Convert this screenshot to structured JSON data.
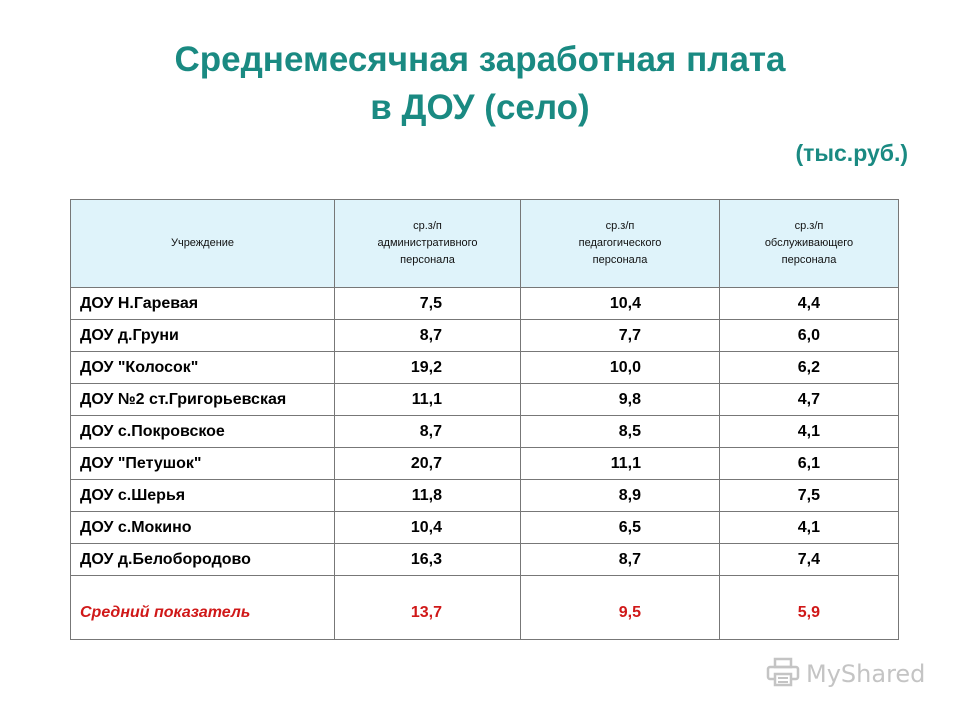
{
  "title": {
    "line1": "Среднемесячная заработная плата",
    "line2": "в ДОУ (село)"
  },
  "unit": "(тыс.руб.)",
  "table": {
    "headers": [
      [
        "Учреждение"
      ],
      [
        "ср.з/п",
        "административного",
        "персонала"
      ],
      [
        "ср.з/п",
        "педагогического",
        "персонала"
      ],
      [
        "ср.з/п",
        "обслуживающего",
        "персонала"
      ]
    ],
    "rows": [
      [
        "ДОУ Н.Гаревая",
        "7,5",
        "10,4",
        "4,4"
      ],
      [
        "ДОУ д.Груни",
        "8,7",
        "7,7",
        "6,0"
      ],
      [
        "ДОУ \"Колосок\"",
        "19,2",
        "10,0",
        "6,2"
      ],
      [
        "ДОУ №2 ст.Григорьевская",
        "11,1",
        "9,8",
        "4,7"
      ],
      [
        "ДОУ с.Покровское",
        "8,7",
        "8,5",
        "4,1"
      ],
      [
        "ДОУ \"Петушок\"",
        "20,7",
        "11,1",
        "6,1"
      ],
      [
        "ДОУ с.Шерья",
        "11,8",
        "8,9",
        "7,5"
      ],
      [
        "ДОУ с.Мокино",
        "10,4",
        "6,5",
        "4,1"
      ],
      [
        "ДОУ д.Белобородово",
        "16,3",
        "8,7",
        "7,4"
      ]
    ],
    "average": [
      "Средний показатель",
      "13,7",
      "9,5",
      "5,9"
    ]
  },
  "watermark": {
    "text": "MyShared",
    "icon": "printer-logo-icon",
    "color": "#c4c4c4"
  },
  "colors": {
    "title": "#1a8a82",
    "header_bg": "#dff3fa",
    "average_text": "#d01818"
  }
}
